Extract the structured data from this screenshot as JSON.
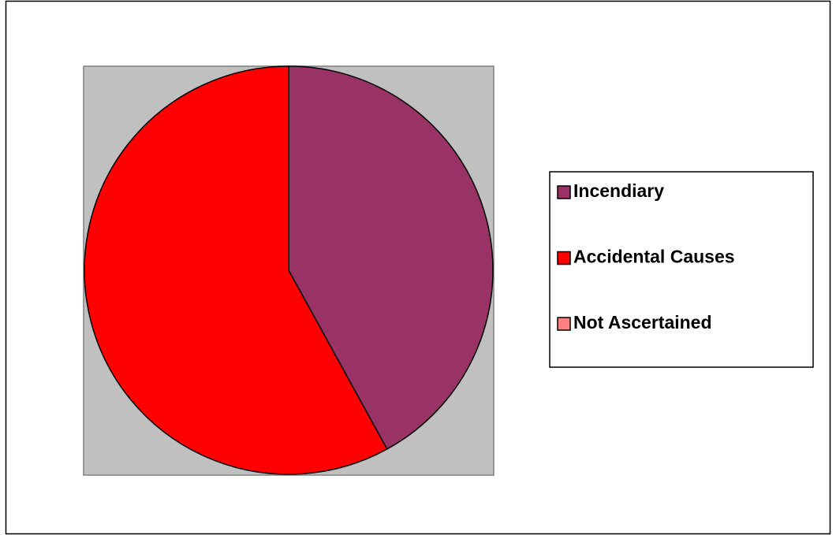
{
  "chart_data": {
    "type": "pie",
    "categories": [
      "Incendiary",
      "Accidental Causes",
      "Not Ascertained"
    ],
    "values": [
      42,
      58,
      0
    ],
    "colors": [
      "#993366",
      "#ff0000",
      "#ff8080"
    ],
    "legend": "right"
  }
}
